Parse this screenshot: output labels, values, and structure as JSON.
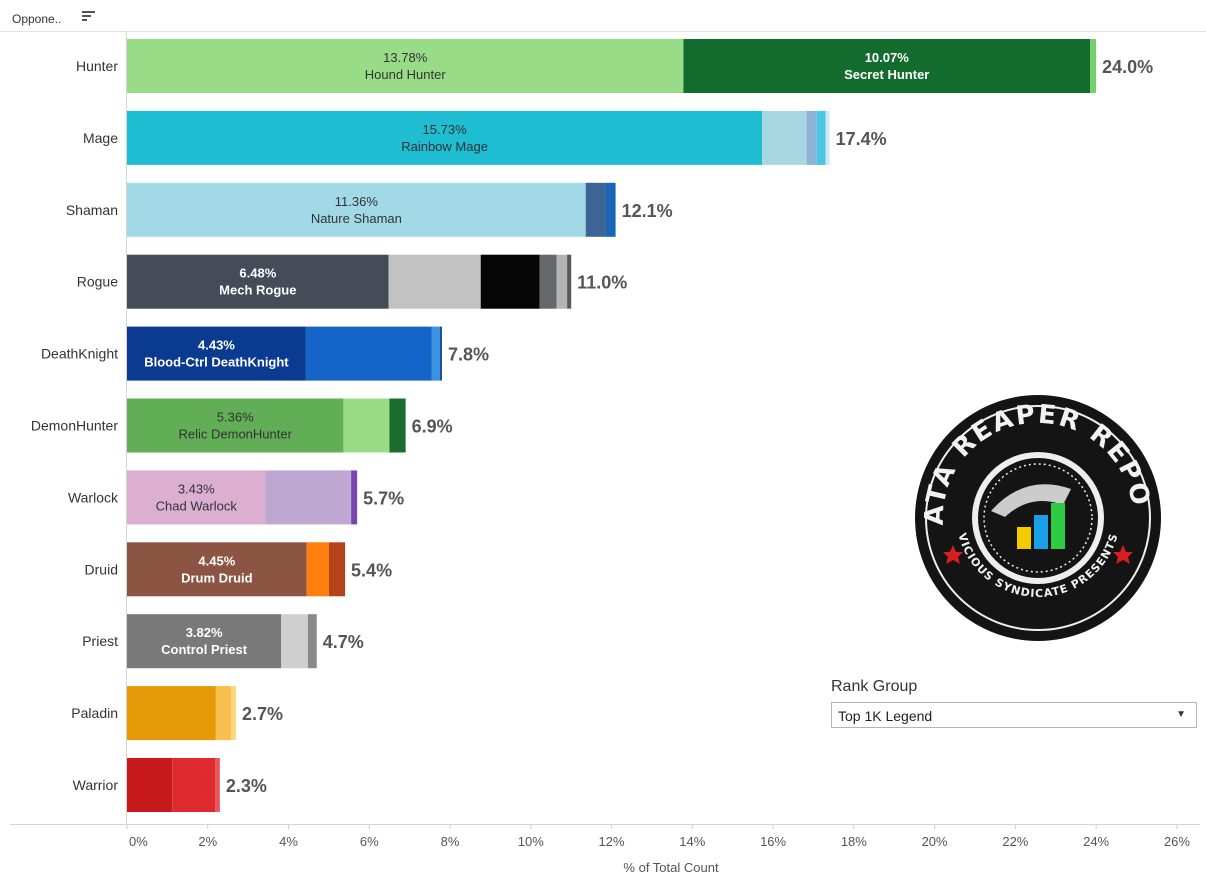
{
  "header": {
    "label": "Oppone..",
    "sort_icon": "sort-descending-icon"
  },
  "chart_data": {
    "type": "bar",
    "orientation": "horizontal",
    "stacked": true,
    "xlabel": "% of Total Count",
    "xlim": [
      0,
      26
    ],
    "xticks": [
      "0%",
      "2%",
      "4%",
      "6%",
      "8%",
      "10%",
      "12%",
      "14%",
      "16%",
      "18%",
      "20%",
      "22%",
      "24%",
      "26%"
    ],
    "grid": false,
    "bars": [
      {
        "category": "Hunter",
        "total_label": "24.0%",
        "segments": [
          {
            "value": 13.78,
            "color": "#98dc88",
            "pct": "13.78%",
            "name": "Hound Hunter",
            "text_color": "#333333",
            "bold": false
          },
          {
            "value": 10.07,
            "color": "#136b2d",
            "pct": "10.07%",
            "name": "Secret Hunter",
            "text_color": "#ffffff",
            "bold": true
          },
          {
            "value": 0.15,
            "color": "#76cf6e"
          }
        ]
      },
      {
        "category": "Mage",
        "total_label": "17.4%",
        "segments": [
          {
            "value": 15.73,
            "color": "#1ebdd1",
            "pct": "15.73%",
            "name": "Rainbow Mage",
            "text_color": "#333333",
            "bold": false
          },
          {
            "value": 1.1,
            "color": "#a7d8e2"
          },
          {
            "value": 0.25,
            "color": "#8eb3d6"
          },
          {
            "value": 0.22,
            "color": "#4bc5e0"
          },
          {
            "value": 0.1,
            "color": "#c9ecf4"
          }
        ]
      },
      {
        "category": "Shaman",
        "total_label": "12.1%",
        "segments": [
          {
            "value": 11.36,
            "color": "#a1d9e7",
            "pct": "11.36%",
            "name": "Nature Shaman",
            "text_color": "#333333",
            "bold": false
          },
          {
            "value": 0.5,
            "color": "#3c6595"
          },
          {
            "value": 0.24,
            "color": "#1966b8"
          }
        ]
      },
      {
        "category": "Rogue",
        "total_label": "11.0%",
        "segments": [
          {
            "value": 6.48,
            "color": "#464c57",
            "pct": "6.48%",
            "name": "Mech Rogue",
            "text_color": "#ffffff",
            "bold": true
          },
          {
            "value": 2.28,
            "color": "#c2c2c2"
          },
          {
            "value": 1.46,
            "color": "#050505"
          },
          {
            "value": 0.42,
            "color": "#65676c"
          },
          {
            "value": 0.26,
            "color": "#b4b4b4"
          },
          {
            "value": 0.1,
            "color": "#585858"
          }
        ]
      },
      {
        "category": "DeathKnight",
        "total_label": "7.8%",
        "segments": [
          {
            "value": 4.43,
            "color": "#0b3a91",
            "pct": "4.43%",
            "name": "Blood-Ctrl DeathKnight",
            "text_color": "#ffffff",
            "bold": true
          },
          {
            "value": 3.12,
            "color": "#1565c8"
          },
          {
            "value": 0.2,
            "color": "#3a92e3"
          },
          {
            "value": 0.05,
            "color": "#1d4f9c"
          }
        ]
      },
      {
        "category": "DemonHunter",
        "total_label": "6.9%",
        "segments": [
          {
            "value": 5.36,
            "color": "#61ae56",
            "pct": "5.36%",
            "name": "Relic DemonHunter",
            "text_color": "#333333",
            "bold": false
          },
          {
            "value": 1.14,
            "color": "#98dc88"
          },
          {
            "value": 0.4,
            "color": "#1a6d2e"
          }
        ]
      },
      {
        "category": "Warlock",
        "total_label": "5.7%",
        "segments": [
          {
            "value": 3.43,
            "color": "#dcafd2",
            "pct": "3.43%",
            "name": "Chad Warlock",
            "text_color": "#333333",
            "bold": false
          },
          {
            "value": 2.12,
            "color": "#bea8d2"
          },
          {
            "value": 0.15,
            "color": "#7b45b0"
          }
        ]
      },
      {
        "category": "Druid",
        "total_label": "5.4%",
        "segments": [
          {
            "value": 4.45,
            "color": "#8c5442",
            "pct": "4.45%",
            "name": "Drum Druid",
            "text_color": "#ffffff",
            "bold": true
          },
          {
            "value": 0.55,
            "color": "#ff7f0e"
          },
          {
            "value": 0.4,
            "color": "#b5421a"
          }
        ]
      },
      {
        "category": "Priest",
        "total_label": "4.7%",
        "segments": [
          {
            "value": 3.82,
            "color": "#797979",
            "pct": "3.82%",
            "name": "Control Priest",
            "text_color": "#ffffff",
            "bold": true
          },
          {
            "value": 0.66,
            "color": "#cfcfcf"
          },
          {
            "value": 0.22,
            "color": "#8a8a8a"
          }
        ]
      },
      {
        "category": "Paladin",
        "total_label": "2.7%",
        "segments": [
          {
            "value": 2.2,
            "color": "#e49a07"
          },
          {
            "value": 0.38,
            "color": "#f7bf4e"
          },
          {
            "value": 0.12,
            "color": "#f9d97c"
          }
        ]
      },
      {
        "category": "Warrior",
        "total_label": "2.3%",
        "segments": [
          {
            "value": 1.12,
            "color": "#c8191c"
          },
          {
            "value": 1.06,
            "color": "#de2a2e"
          },
          {
            "value": 0.12,
            "color": "#e8585a"
          }
        ]
      }
    ]
  },
  "logo": {
    "icon": "data-reaper-report-logo",
    "title": "DATA REAPER REPORT",
    "subtitle": "VICIOUS SYNDICATE PRESENTS",
    "colors": [
      "#f2cc00",
      "#1aa0e8",
      "#2ecc40"
    ]
  },
  "rank_group": {
    "title": "Rank Group",
    "value": "Top 1K Legend"
  }
}
